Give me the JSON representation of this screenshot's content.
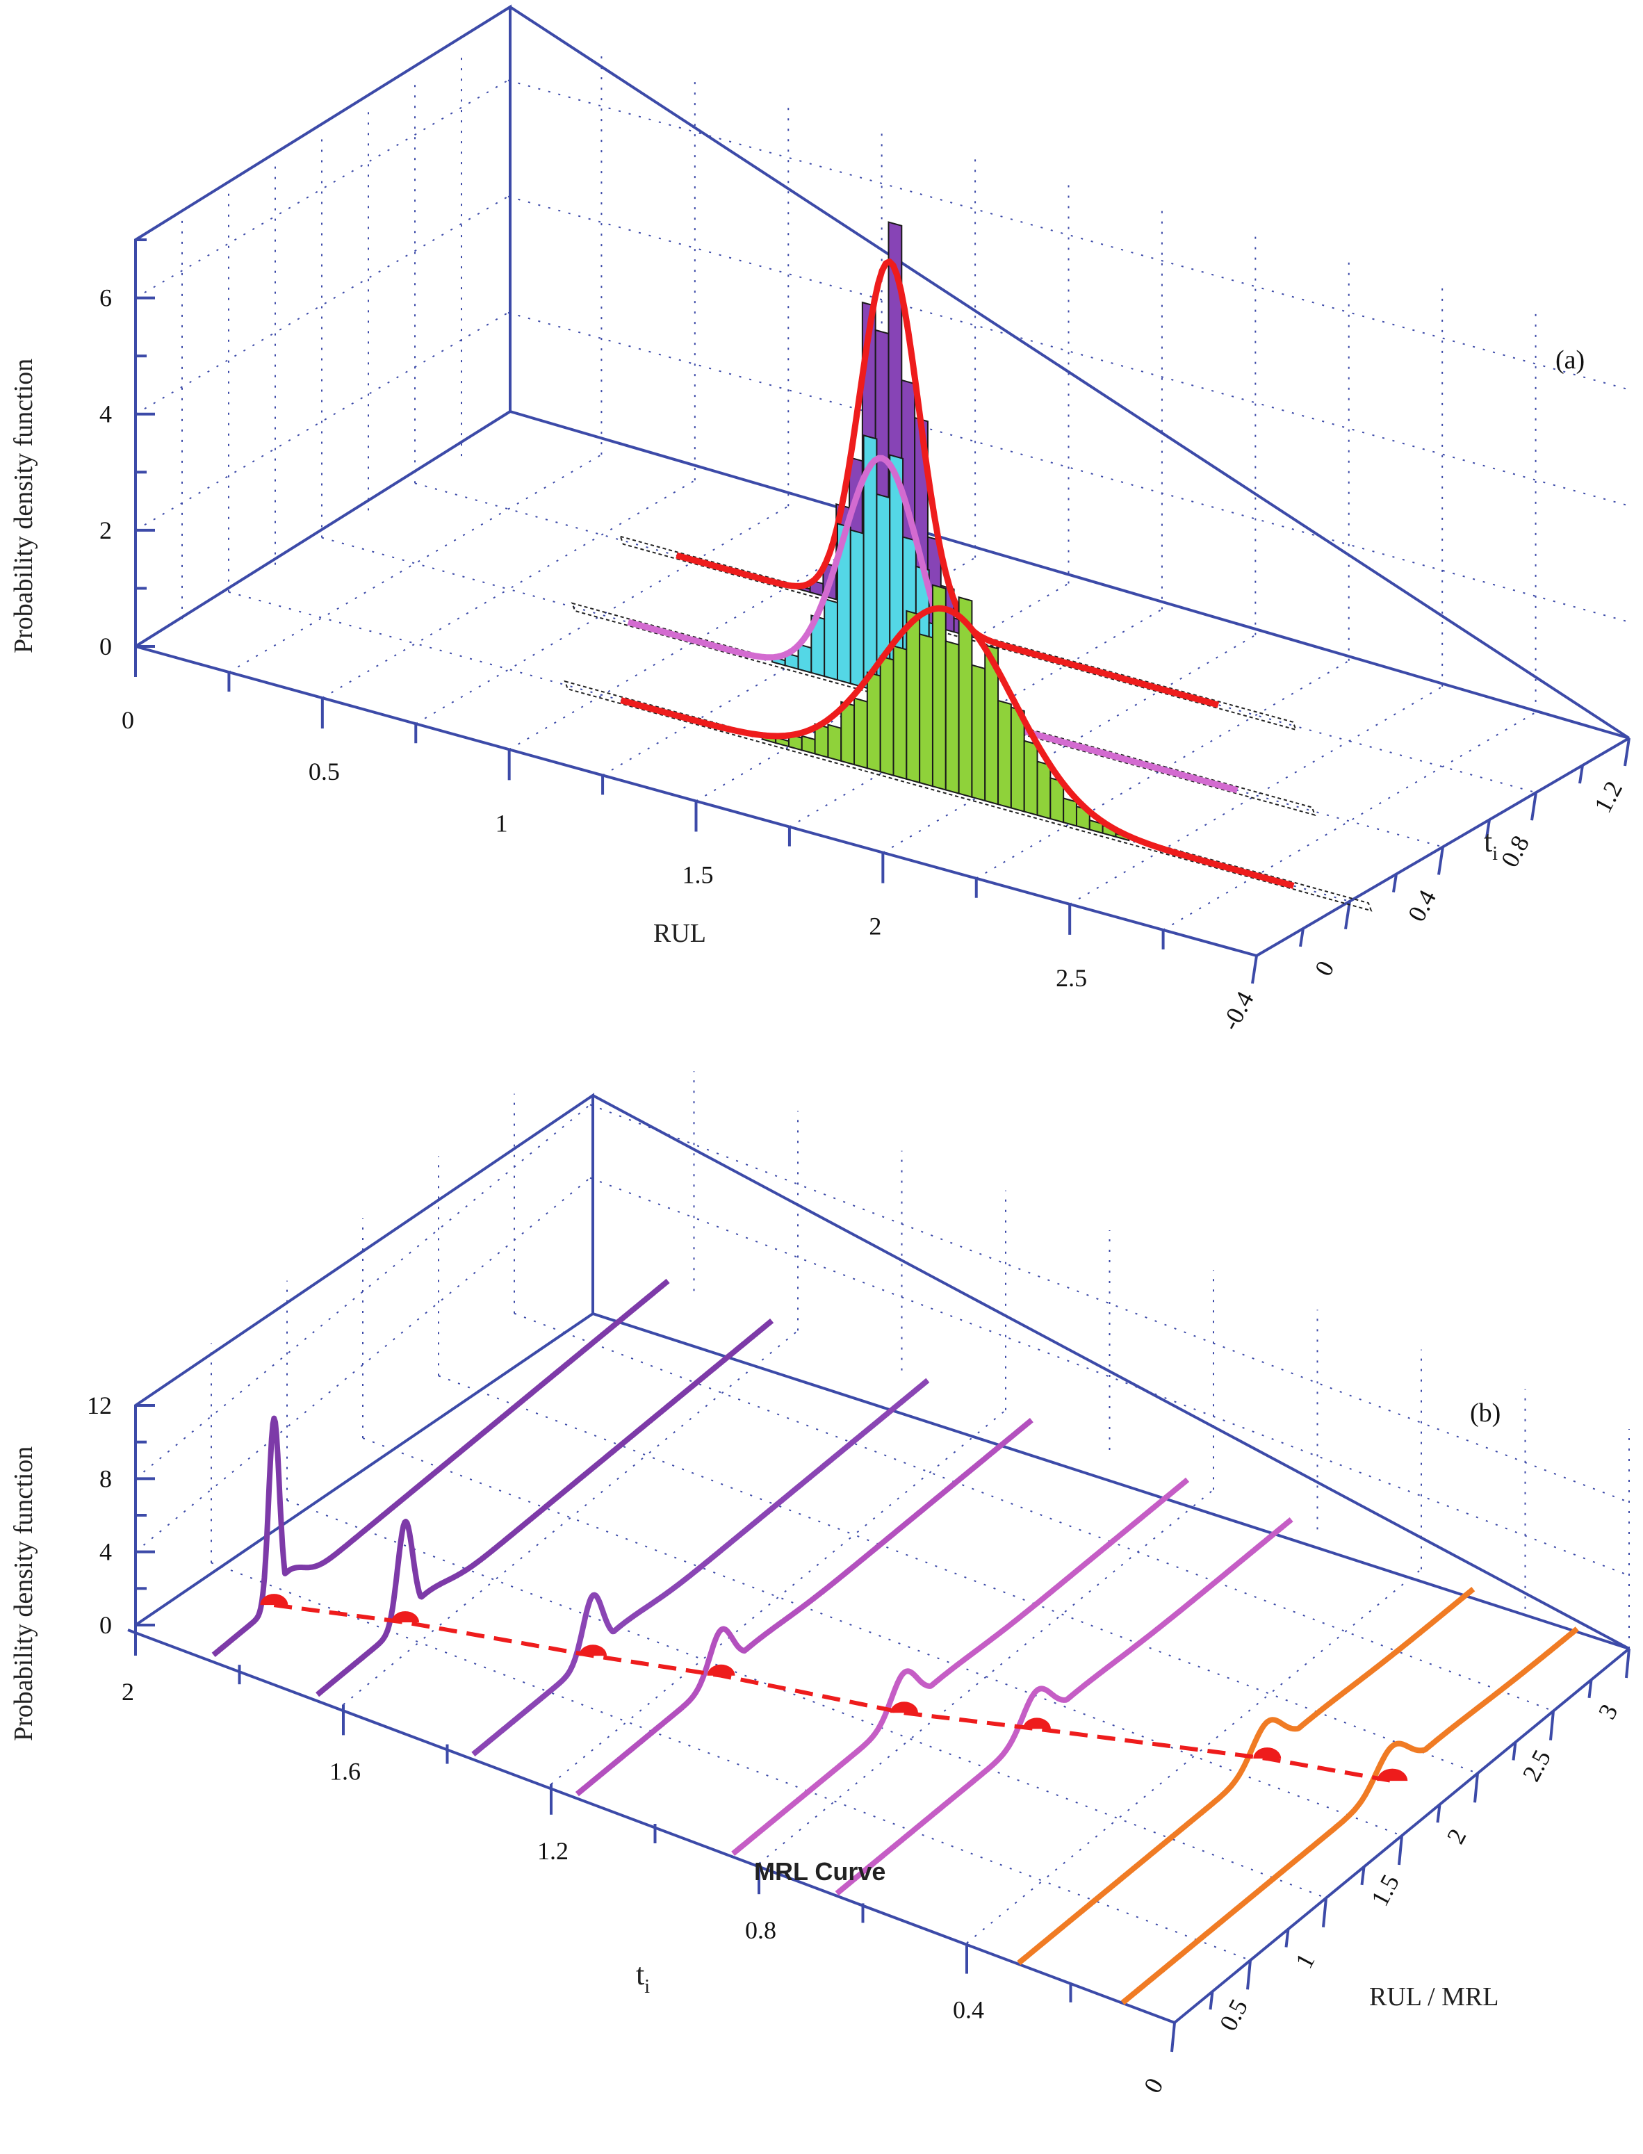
{
  "chart_data": [
    {
      "type": "histogram-3d",
      "panel_label": "(a)",
      "zlabel": "Probability density function",
      "xlabel": "RUL",
      "ylabel": "t",
      "ylabel_sub": "i",
      "x_ticks": [
        "0",
        "0.5",
        "1",
        "1.5",
        "2",
        "2.5"
      ],
      "y_ticks": [
        "-0.4",
        "0",
        "0.4",
        "0.8",
        "1.2"
      ],
      "z_ticks": [
        "0",
        "2",
        "4",
        "6"
      ],
      "xlim": [
        0,
        3
      ],
      "ylim": [
        -0.4,
        1.2
      ],
      "zlim": [
        0,
        7
      ],
      "grid": true,
      "series": [
        {
          "t": 0.0,
          "bar_color": "#8fd23a",
          "pdf_color": "#ee1c1c",
          "mean": 1.92,
          "sd": 0.17,
          "peak": 3.05,
          "from": 1.05,
          "to": 2.85
        },
        {
          "t": 0.4,
          "bar_color": "#54d7e6",
          "pdf_color": "#d36bd0",
          "mean": 1.5,
          "sd": 0.1,
          "peak": 3.95,
          "from": 0.82,
          "to": 2.45
        },
        {
          "t": 0.8,
          "bar_color": "#8744b6",
          "pdf_color": "#ee1c1c",
          "mean": 1.27,
          "sd": 0.075,
          "peak": 5.95,
          "from": 0.7,
          "to": 2.15
        }
      ]
    },
    {
      "type": "line-3d",
      "panel_label": "(b)",
      "zlabel": "Probability density function",
      "xlabel": "RUL / MRL",
      "ylabel": "t",
      "ylabel_sub": "i",
      "annotation": "MRL Curve",
      "x_ticks": [
        "0",
        "0.5",
        "1",
        "1.5",
        "2",
        "2.5",
        "3"
      ],
      "y_ticks": [
        "2",
        "1.6",
        "1.2",
        "0.8",
        "0.4",
        "0"
      ],
      "z_ticks": [
        "0",
        "4",
        "8",
        "12"
      ],
      "xlim": [
        0,
        3
      ],
      "ylim": [
        0,
        2
      ],
      "zlim": [
        0,
        12
      ],
      "grid": true,
      "mrl_color": "#ee1c1c",
      "series": [
        {
          "t": 1.85,
          "mrl": 0.4,
          "peak": 10.2,
          "width": 0.035,
          "color": "#7d3aa8"
        },
        {
          "t": 1.65,
          "mrl": 0.58,
          "peak": 5.5,
          "width": 0.05,
          "color": "#7d3aa8"
        },
        {
          "t": 1.35,
          "mrl": 0.79,
          "peak": 3.3,
          "width": 0.065,
          "color": "#8a45b4"
        },
        {
          "t": 1.15,
          "mrl": 0.95,
          "peak": 2.5,
          "width": 0.075,
          "color": "#b350be"
        },
        {
          "t": 0.85,
          "mrl": 1.13,
          "peak": 2.2,
          "width": 0.085,
          "color": "#c55dc5"
        },
        {
          "t": 0.65,
          "mrl": 1.32,
          "peak": 2.1,
          "width": 0.095,
          "color": "#c55dc5"
        },
        {
          "t": 0.3,
          "mrl": 1.64,
          "peak": 2.0,
          "width": 0.1,
          "color": "#f07b24"
        },
        {
          "t": 0.1,
          "mrl": 1.78,
          "peak": 1.9,
          "width": 0.105,
          "color": "#f07b24"
        }
      ]
    }
  ]
}
